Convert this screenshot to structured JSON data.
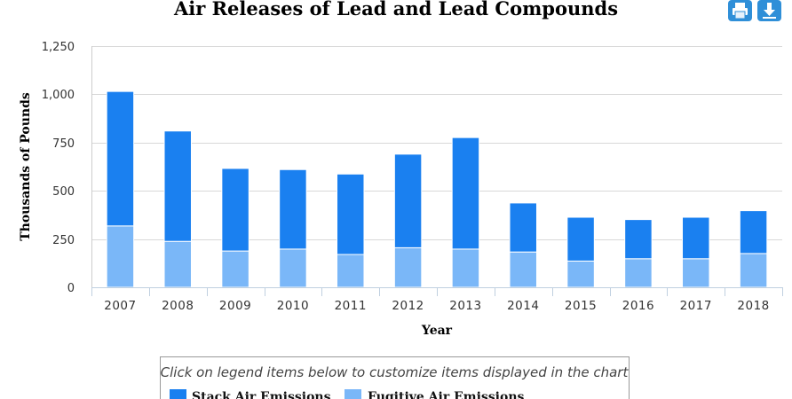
{
  "toolbar": {
    "print_icon": "printer-icon",
    "download_icon": "download-icon",
    "button_color": "#2f8fd8"
  },
  "legend": {
    "caption": "Click on legend items below to customize items displayed in the chart",
    "items": [
      {
        "label": "Stack Air Emissions",
        "color": "#1a80f0"
      },
      {
        "label": "Fugitive Air Emissions",
        "color": "#7ab7f8"
      }
    ]
  },
  "chart_data": {
    "type": "bar",
    "stacked": true,
    "title": "Air Releases of Lead and Lead Compounds",
    "xlabel": "Year",
    "ylabel": "Thousands of Pounds",
    "ylim": [
      0,
      1250
    ],
    "yticks": [
      0,
      250,
      500,
      750,
      1000,
      1250
    ],
    "ytick_labels": [
      "0",
      "250",
      "500",
      "750",
      "1,000",
      "1,250"
    ],
    "grid": true,
    "legend_position": "bottom",
    "categories": [
      "2007",
      "2008",
      "2009",
      "2010",
      "2011",
      "2012",
      "2013",
      "2014",
      "2015",
      "2016",
      "2017",
      "2018"
    ],
    "series": [
      {
        "name": "Fugitive Air Emissions",
        "color": "#7ab7f8",
        "values": [
          318,
          238,
          188,
          198,
          170,
          205,
          198,
          183,
          136,
          148,
          148,
          175
        ]
      },
      {
        "name": "Stack Air Emissions",
        "color": "#1a80f0",
        "values": [
          697,
          572,
          428,
          412,
          417,
          485,
          578,
          254,
          227,
          203,
          215,
          222
        ]
      }
    ]
  }
}
